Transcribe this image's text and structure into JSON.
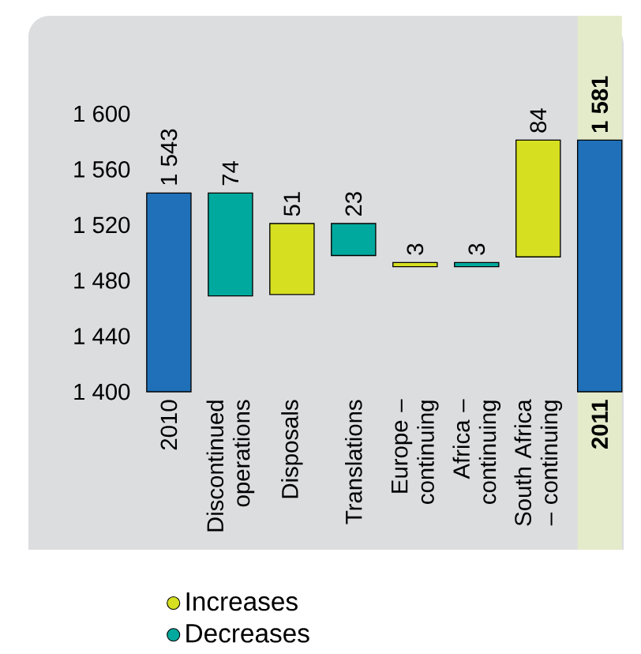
{
  "chart_data": {
    "type": "bar",
    "categories": [
      "2010",
      "Discontinued operations",
      "Disposals",
      "Translations",
      "Europe – continuing",
      "Africa – continuing",
      "South Africa – continuing",
      "2011"
    ],
    "series": [
      {
        "color": "#1f70b8",
        "values": [
          143,
          null,
          null,
          null,
          null,
          null,
          null,
          181
        ],
        "base": [
          1400,
          null,
          null,
          null,
          null,
          null,
          null,
          1400
        ],
        "value_labels": [
          "1 543",
          null,
          null,
          null,
          null,
          null,
          null,
          "1 581"
        ]
      },
      {
        "name": "Increases",
        "color": "#d6e021",
        "values": [
          null,
          null,
          51,
          null,
          3,
          null,
          84,
          null
        ],
        "base": [
          null,
          null,
          1470,
          null,
          1490,
          null,
          1497,
          null
        ],
        "value_labels": [
          null,
          null,
          "51",
          null,
          "3",
          null,
          "84",
          null
        ]
      },
      {
        "name": "Decreases",
        "color": "#00a99d",
        "values": [
          null,
          74,
          null,
          23,
          null,
          3,
          null,
          null
        ],
        "base": [
          null,
          1469,
          null,
          1498,
          null,
          1490,
          null,
          null
        ],
        "value_labels": [
          null,
          "74",
          null,
          "23",
          null,
          "3",
          null,
          null
        ]
      }
    ],
    "ylim": [
      1400,
      1600
    ],
    "yticks": [
      {
        "value": 1400,
        "label": "1 400"
      },
      {
        "value": 1440,
        "label": "1 440"
      },
      {
        "value": 1480,
        "label": "1 480"
      },
      {
        "value": 1520,
        "label": "1 520"
      },
      {
        "value": 1560,
        "label": "1 560"
      },
      {
        "value": 1600,
        "label": "1 600"
      }
    ],
    "bands": [
      {
        "axis": "x",
        "from": "2011",
        "to": "2011",
        "color": "#e3ebcb"
      }
    ],
    "grid": false,
    "legend": "bottom left"
  }
}
